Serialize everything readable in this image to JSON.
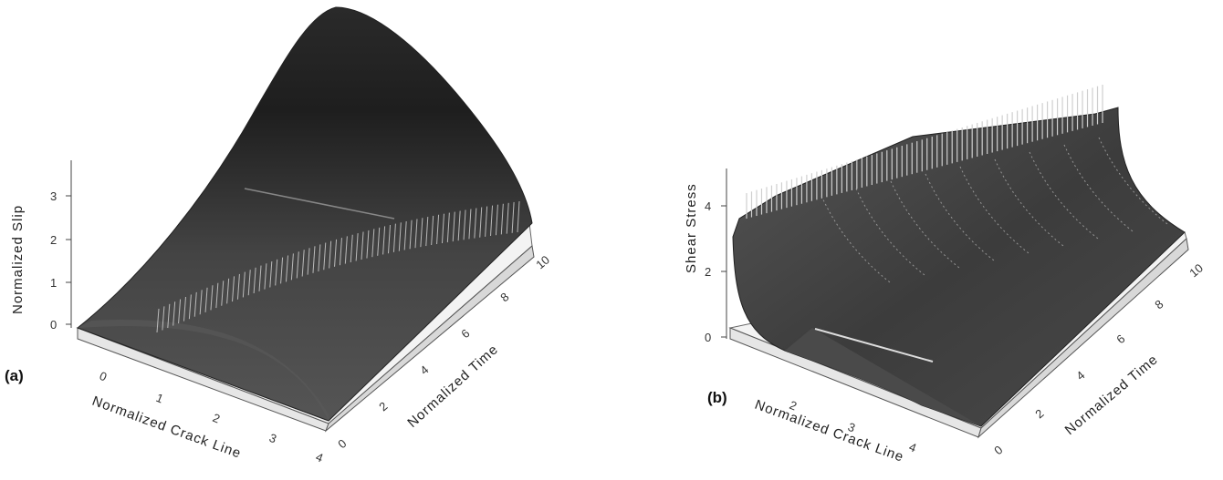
{
  "chart_data": [
    {
      "type": "surface",
      "panel_label": "(a)",
      "xlabel": "Normalized Crack Line",
      "ylabel": "Normalized Time",
      "zlabel": "Normalized Slip",
      "x_ticks": [
        "0",
        "1",
        "2",
        "3",
        "4"
      ],
      "y_ticks": [
        "0",
        "2",
        "4",
        "6",
        "8",
        "10"
      ],
      "z_ticks": [
        "0",
        "1",
        "2",
        "3"
      ],
      "xlim": [
        0,
        4
      ],
      "ylim": [
        0,
        10
      ],
      "zlim": [
        0,
        3.5
      ],
      "surface_color": "#3a3a3a",
      "base_color": "#f2f2f2"
    },
    {
      "type": "surface",
      "panel_label": "(b)",
      "xlabel": "Normalized Crack Line",
      "ylabel": "Normalized Time",
      "zlabel": "Shear Stress",
      "x_ticks": [
        "2",
        "3",
        "4"
      ],
      "y_ticks": [
        "0",
        "2",
        "4",
        "6",
        "8",
        "10"
      ],
      "z_ticks": [
        "0",
        "2",
        "4"
      ],
      "xlim": [
        1,
        4.5
      ],
      "ylim": [
        0,
        10
      ],
      "zlim": [
        0,
        4.5
      ],
      "surface_color": "#3a3a3a",
      "base_color": "#f2f2f2"
    }
  ]
}
